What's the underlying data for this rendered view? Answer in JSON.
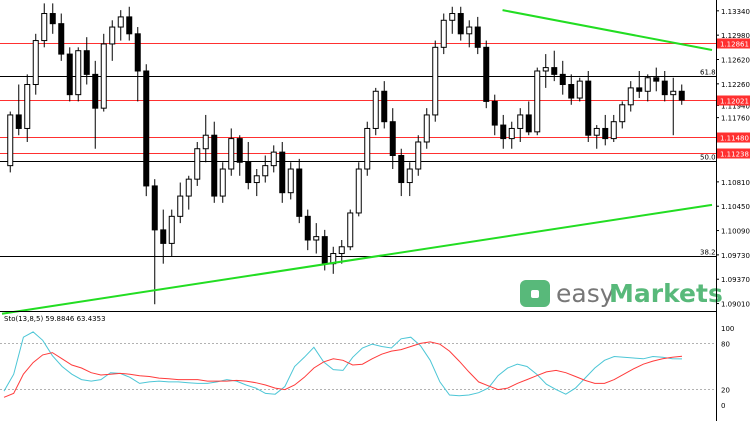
{
  "colors": {
    "background": "#ffffff",
    "grid": "#000000",
    "resistance": "#ff3030",
    "trendline": "#22dd22",
    "candle": "#000000",
    "stoch_main": "#4cc6d6",
    "stoch_signal": "#ff3b3b",
    "logo_green": "#58b97a",
    "logo_gray": "#777777"
  },
  "watermark": {
    "text_prefix": "easy",
    "text_suffix": "Markets"
  },
  "chart_data": [
    {
      "type": "candlestick",
      "title": "",
      "price_axis_labels": [
        "1.13340",
        "1.12980",
        "1.12620",
        "1.12260",
        "1.11940",
        "1.11760",
        "1.10810",
        "1.10450",
        "1.10090",
        "1.09730",
        "1.09370",
        "1.09010"
      ],
      "horizontal_lines": [
        {
          "label": "1.12861",
          "value": 1.12861,
          "color": "red"
        },
        {
          "label": "1.12021",
          "value": 1.12021,
          "color": "red"
        },
        {
          "label": "1.11480",
          "value": 1.1148,
          "color": "red"
        },
        {
          "label": "1.11238",
          "value": 1.11238,
          "color": "red"
        }
      ],
      "fib_levels": [
        {
          "label": "61.8",
          "value": 1.1237
        },
        {
          "label": "50.0",
          "value": 1.1112
        },
        {
          "label": "38.2",
          "value": 1.0971
        }
      ],
      "trendlines": [
        {
          "name": "descending",
          "from": {
            "bar": 0.705,
            "price": 1.1335
          },
          "to": {
            "bar": 1.0,
            "price": 1.1276
          }
        },
        {
          "name": "ascending",
          "from": {
            "bar": 0.0,
            "price": 1.0886
          },
          "to": {
            "bar": 1.0,
            "price": 1.1047
          }
        }
      ],
      "candles": [
        [
          1.1105,
          1.1185,
          1.1095,
          1.118
        ],
        [
          1.118,
          1.1225,
          1.115,
          1.116
        ],
        [
          1.116,
          1.124,
          1.114,
          1.1225
        ],
        [
          1.1225,
          1.13,
          1.121,
          1.129
        ],
        [
          1.129,
          1.1345,
          1.128,
          1.133
        ],
        [
          1.133,
          1.1345,
          1.13,
          1.1315
        ],
        [
          1.1315,
          1.133,
          1.126,
          1.127
        ],
        [
          1.127,
          1.128,
          1.12,
          1.121
        ],
        [
          1.121,
          1.128,
          1.12,
          1.1275
        ],
        [
          1.1275,
          1.1295,
          1.1225,
          1.124
        ],
        [
          1.124,
          1.126,
          1.113,
          1.119
        ],
        [
          1.119,
          1.13,
          1.1185,
          1.1285
        ],
        [
          1.1285,
          1.132,
          1.126,
          1.131
        ],
        [
          1.131,
          1.1335,
          1.129,
          1.1325
        ],
        [
          1.1325,
          1.134,
          1.129,
          1.13
        ],
        [
          1.13,
          1.131,
          1.12,
          1.1245
        ],
        [
          1.1245,
          1.1255,
          1.106,
          1.1075
        ],
        [
          1.1075,
          1.1085,
          1.09,
          1.101
        ],
        [
          1.101,
          1.104,
          1.096,
          1.099
        ],
        [
          1.099,
          1.104,
          1.097,
          1.103
        ],
        [
          1.103,
          1.108,
          1.102,
          1.106
        ],
        [
          1.106,
          1.109,
          1.104,
          1.1085
        ],
        [
          1.1085,
          1.114,
          1.1075,
          1.113
        ],
        [
          1.113,
          1.118,
          1.111,
          1.115
        ],
        [
          1.115,
          1.117,
          1.105,
          1.106
        ],
        [
          1.106,
          1.111,
          1.105,
          1.11
        ],
        [
          1.11,
          1.116,
          1.109,
          1.1145
        ],
        [
          1.1145,
          1.115,
          1.109,
          1.111
        ],
        [
          1.111,
          1.114,
          1.107,
          1.108
        ],
        [
          1.108,
          1.11,
          1.106,
          1.109
        ],
        [
          1.109,
          1.112,
          1.108,
          1.1105
        ],
        [
          1.1105,
          1.1135,
          1.1095,
          1.1125
        ],
        [
          1.1125,
          1.114,
          1.105,
          1.1065
        ],
        [
          1.1065,
          1.111,
          1.1055,
          1.11
        ],
        [
          1.11,
          1.1115,
          1.102,
          1.103
        ],
        [
          1.103,
          1.104,
          1.098,
          1.0995
        ],
        [
          1.0995,
          1.102,
          1.0975,
          1.1
        ],
        [
          1.1,
          1.101,
          1.095,
          1.096
        ],
        [
          1.096,
          1.0985,
          1.0945,
          1.0975
        ],
        [
          1.0975,
          1.0995,
          1.096,
          1.0985
        ],
        [
          1.0985,
          1.104,
          1.098,
          1.1035
        ],
        [
          1.1035,
          1.111,
          1.103,
          1.11
        ],
        [
          1.11,
          1.117,
          1.109,
          1.116
        ],
        [
          1.116,
          1.122,
          1.115,
          1.1215
        ],
        [
          1.1215,
          1.123,
          1.116,
          1.117
        ],
        [
          1.117,
          1.119,
          1.11,
          1.112
        ],
        [
          1.112,
          1.113,
          1.106,
          1.108
        ],
        [
          1.108,
          1.111,
          1.106,
          1.11
        ],
        [
          1.11,
          1.115,
          1.109,
          1.114
        ],
        [
          1.114,
          1.119,
          1.113,
          1.118
        ],
        [
          1.118,
          1.129,
          1.117,
          1.128
        ],
        [
          1.128,
          1.133,
          1.127,
          1.132
        ],
        [
          1.132,
          1.134,
          1.13,
          1.133
        ],
        [
          1.133,
          1.134,
          1.129,
          1.13
        ],
        [
          1.13,
          1.132,
          1.128,
          1.131
        ],
        [
          1.131,
          1.1325,
          1.127,
          1.128
        ],
        [
          1.128,
          1.129,
          1.119,
          1.12
        ],
        [
          1.12,
          1.121,
          1.115,
          1.1165
        ],
        [
          1.1165,
          1.118,
          1.113,
          1.1145
        ],
        [
          1.1145,
          1.117,
          1.113,
          1.116
        ],
        [
          1.116,
          1.119,
          1.114,
          1.118
        ],
        [
          1.118,
          1.12,
          1.115,
          1.1155
        ],
        [
          1.1155,
          1.125,
          1.115,
          1.1245
        ],
        [
          1.1245,
          1.127,
          1.122,
          1.125
        ],
        [
          1.125,
          1.1275,
          1.123,
          1.124
        ],
        [
          1.124,
          1.126,
          1.121,
          1.1225
        ],
        [
          1.1225,
          1.124,
          1.1195,
          1.1205
        ],
        [
          1.1205,
          1.1235,
          1.12,
          1.123
        ],
        [
          1.123,
          1.1245,
          1.114,
          1.115
        ],
        [
          1.115,
          1.1165,
          1.113,
          1.116
        ],
        [
          1.116,
          1.118,
          1.1135,
          1.1145
        ],
        [
          1.1145,
          1.118,
          1.114,
          1.117
        ],
        [
          1.117,
          1.12,
          1.116,
          1.1195
        ],
        [
          1.1195,
          1.123,
          1.1185,
          1.122
        ],
        [
          1.122,
          1.1245,
          1.1205,
          1.1215
        ],
        [
          1.1215,
          1.124,
          1.12,
          1.1235
        ],
        [
          1.1235,
          1.125,
          1.1215,
          1.123
        ],
        [
          1.123,
          1.1245,
          1.12,
          1.121
        ],
        [
          1.121,
          1.1235,
          1.115,
          1.1215
        ],
        [
          1.1215,
          1.1225,
          1.1195,
          1.1202
        ]
      ]
    },
    {
      "type": "line",
      "title": "Sto(13,8,5) 59.8846 63.4353",
      "y_axis_labels": [
        "100",
        "80",
        "20",
        "0"
      ],
      "ylim": [
        0,
        100
      ],
      "series": [
        {
          "name": "",
          "values": [
            18,
            40,
            88,
            95,
            84,
            64,
            50,
            40,
            33,
            31,
            33,
            42,
            41,
            36,
            28,
            30,
            31,
            30,
            30,
            29,
            28,
            28,
            30,
            33,
            31,
            26,
            22,
            15,
            14,
            24,
            50,
            62,
            75,
            56,
            46,
            45,
            62,
            74,
            79,
            76,
            74,
            86,
            88,
            77,
            58,
            30,
            13,
            12,
            13,
            16,
            22,
            38,
            48,
            53,
            50,
            40,
            27,
            20,
            14,
            22,
            35,
            48,
            58,
            63,
            62,
            61,
            60,
            63,
            62,
            60,
            59.88
          ]
        },
        {
          "name": "",
          "values": [
            10,
            15,
            40,
            55,
            65,
            68,
            60,
            52,
            48,
            42,
            39,
            40,
            41,
            40,
            38,
            37,
            35,
            34,
            33,
            33,
            33,
            31,
            31,
            31,
            32,
            31,
            29,
            26,
            22,
            20,
            26,
            36,
            48,
            56,
            60,
            58,
            52,
            53,
            60,
            66,
            70,
            72,
            76,
            80,
            82,
            79,
            70,
            57,
            43,
            30,
            25,
            20,
            22,
            28,
            33,
            38,
            43,
            45,
            42,
            37,
            32,
            28,
            28,
            33,
            40,
            47,
            53,
            57,
            60,
            62,
            63.44
          ]
        }
      ]
    }
  ]
}
